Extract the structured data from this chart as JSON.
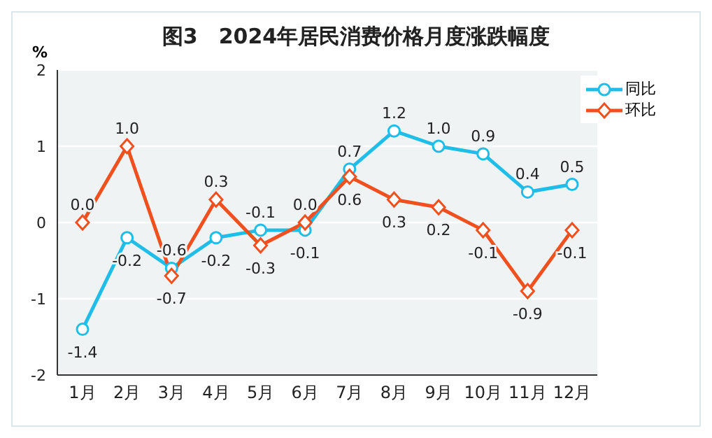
{
  "chart_data": {
    "type": "line",
    "title": "图3　2024年居民消费价格月度涨跌幅度",
    "ylabel": "%",
    "categories": [
      "1月",
      "2月",
      "3月",
      "4月",
      "5月",
      "6月",
      "7月",
      "8月",
      "9月",
      "10月",
      "11月",
      "12月"
    ],
    "series": [
      {
        "name": "同比",
        "color": "#1fbde8",
        "marker": "circle",
        "values": [
          -1.4,
          -0.2,
          -0.6,
          -0.2,
          -0.1,
          -0.1,
          0.7,
          1.2,
          1.0,
          0.9,
          0.4,
          0.5
        ],
        "value_labels": [
          "-1.4",
          "-0.2",
          "-0.6",
          "-0.2",
          "-0.1",
          "-0.1",
          "0.7",
          "1.2",
          "1.0",
          "0.9",
          "0.4",
          "0.5"
        ]
      },
      {
        "name": "环比",
        "color": "#f0501e",
        "marker": "diamond",
        "values": [
          0.0,
          1.0,
          -0.7,
          0.3,
          -0.3,
          0.0,
          0.6,
          0.3,
          0.2,
          -0.1,
          -0.9,
          -0.1
        ],
        "value_labels": [
          "0.0",
          "1.0",
          "-0.7",
          "0.3",
          "-0.3",
          "0.0",
          "0.6",
          "0.3",
          "0.2",
          "-0.1",
          "-0.9",
          "-0.1"
        ]
      }
    ],
    "ylim": [
      -2,
      2
    ],
    "yticks": [
      -2,
      -1,
      0,
      1,
      2
    ],
    "grid": "y",
    "legend": "top right",
    "line_style": "solid"
  }
}
